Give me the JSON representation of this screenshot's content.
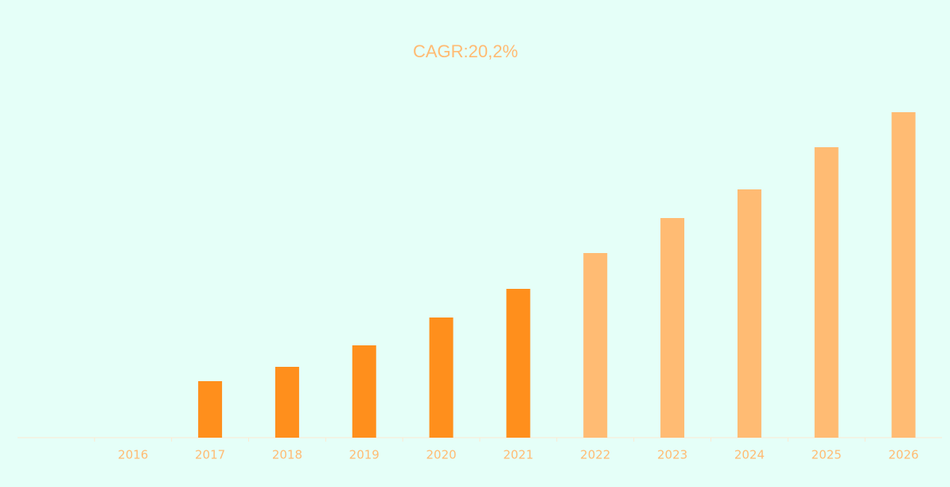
{
  "chart_data": {
    "type": "bar",
    "title": "CAGR:20,2%",
    "categories": [
      null,
      "2016",
      "2017",
      "2018",
      "2019",
      "2020",
      "2021",
      "2022",
      "2023",
      "2024",
      "2025",
      "2026"
    ],
    "values": [
      null,
      null,
      71,
      89,
      116,
      151,
      187,
      232,
      276,
      312,
      365,
      409
    ],
    "colors": [
      "#ff8f1c",
      "#ff8f1c",
      "#ff8f1c",
      "#ff8f1c",
      "#ff8f1c",
      "#ff8f1c",
      "#ff8f1c",
      "#ffbb73",
      "#ffbb73",
      "#ffbb73",
      "#ffbb73",
      "#ffbb73"
    ],
    "ylim": [
      0,
      450
    ]
  }
}
